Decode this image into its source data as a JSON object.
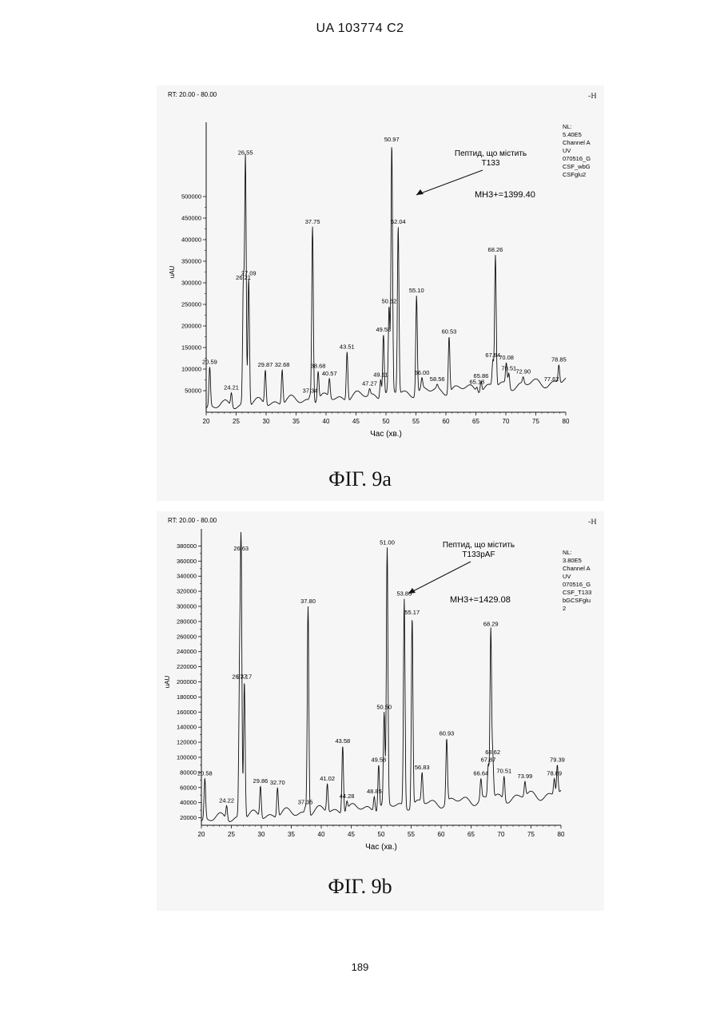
{
  "page": {
    "header": "UA   103774   C2",
    "footer": "189"
  },
  "figures": [
    {
      "caption": "ФІГ. 9а",
      "rt_label": "RT: 20.00 - 80.00",
      "corner_mark": "-ℍ",
      "side_note": [
        "NL:",
        "5.40E5",
        "Channel A",
        "UV",
        "070516_G",
        "CSF_wbG",
        "CSFglu2"
      ],
      "annotation_lines": [
        "Пептид, що містить",
        "Т133"
      ],
      "mh_label": "MH3+=1399.40"
    },
    {
      "caption": "ФІГ. 9b",
      "rt_label": "RT: 20.00 - 80.00",
      "corner_mark": "-ℍ",
      "side_note": [
        "NL:",
        "3.80E5",
        "Channel A",
        "UV",
        "070516_G",
        "CSF_T133",
        "bGCSFglu",
        "2"
      ],
      "annotation_lines": [
        "Пептид, що містить",
        "T133pAF"
      ],
      "mh_label": "MH3+=1429.08"
    }
  ],
  "chart_data": [
    {
      "type": "line",
      "xlabel": "Час (хв.)",
      "ylabel": "uAU",
      "xlim": [
        20,
        80
      ],
      "ylim": [
        0,
        650000
      ],
      "xticks": [
        20,
        25,
        30,
        35,
        40,
        45,
        50,
        55,
        60,
        65,
        70,
        75,
        80
      ],
      "yticks": [
        50000,
        100000,
        150000,
        200000,
        250000,
        300000,
        350000,
        400000,
        450000,
        500000
      ],
      "peaks": [
        {
          "label": "20.59",
          "x": 20.59,
          "y": 105000
        },
        {
          "label": "24.21",
          "x": 24.21,
          "y": 45000
        },
        {
          "label": "26.21",
          "x": 26.21,
          "y": 300000
        },
        {
          "label": "26.55",
          "x": 26.55,
          "y": 590000
        },
        {
          "label": "27.09",
          "x": 27.09,
          "y": 310000
        },
        {
          "label": "29.87",
          "x": 29.87,
          "y": 98000
        },
        {
          "label": "32.68",
          "x": 32.68,
          "y": 98000
        },
        {
          "label": "37.34",
          "x": 37.34,
          "y": 38000
        },
        {
          "label": "37.75",
          "x": 37.75,
          "y": 430000
        },
        {
          "label": "38.68",
          "x": 38.68,
          "y": 95000
        },
        {
          "label": "40.57",
          "x": 40.57,
          "y": 78000
        },
        {
          "label": "43.51",
          "x": 43.51,
          "y": 140000
        },
        {
          "label": "47.27",
          "x": 47.27,
          "y": 55000
        },
        {
          "label": "49.11",
          "x": 49.11,
          "y": 75000
        },
        {
          "label": "49.58",
          "x": 49.58,
          "y": 180000
        },
        {
          "label": "50.52",
          "x": 50.52,
          "y": 245000
        },
        {
          "label": "50.97",
          "x": 50.97,
          "y": 620000
        },
        {
          "label": "52.04",
          "x": 52.04,
          "y": 430000
        },
        {
          "label": "55.10",
          "x": 55.1,
          "y": 270000
        },
        {
          "label": "56.00",
          "x": 56.0,
          "y": 80000
        },
        {
          "label": "58.56",
          "x": 58.56,
          "y": 65000
        },
        {
          "label": "60.53",
          "x": 60.53,
          "y": 175000
        },
        {
          "label": "65.18",
          "x": 65.18,
          "y": 58000
        },
        {
          "label": "65.86",
          "x": 65.86,
          "y": 72000
        },
        {
          "label": "67.84",
          "x": 67.84,
          "y": 120000
        },
        {
          "label": "68.26",
          "x": 68.26,
          "y": 365000
        },
        {
          "label": "70.08",
          "x": 70.08,
          "y": 115000
        },
        {
          "label": "70.51",
          "x": 70.51,
          "y": 90000
        },
        {
          "label": "72.90",
          "x": 72.9,
          "y": 82000
        },
        {
          "label": "77.62",
          "x": 77.62,
          "y": 65000
        },
        {
          "label": "78.85",
          "x": 78.85,
          "y": 110000
        }
      ]
    },
    {
      "type": "line",
      "xlabel": "Час (хв.)",
      "ylabel": "uAU",
      "xlim": [
        20,
        80
      ],
      "ylim": [
        10000,
        390000
      ],
      "xticks": [
        20,
        25,
        30,
        35,
        40,
        45,
        50,
        55,
        60,
        65,
        70,
        75,
        80
      ],
      "yticks": [
        20000,
        40000,
        60000,
        80000,
        100000,
        120000,
        140000,
        160000,
        180000,
        200000,
        220000,
        240000,
        260000,
        280000,
        300000,
        320000,
        340000,
        360000,
        380000
      ],
      "peaks": [
        {
          "label": "20.58",
          "x": 20.58,
          "y": 72000
        },
        {
          "label": "24.22",
          "x": 24.22,
          "y": 36000
        },
        {
          "label": "26.37",
          "x": 26.37,
          "y": 200000
        },
        {
          "label": "26.63",
          "x": 26.63,
          "y": 370000
        },
        {
          "label": "27.17",
          "x": 27.17,
          "y": 200000
        },
        {
          "label": "29.86",
          "x": 29.86,
          "y": 62000
        },
        {
          "label": "32.70",
          "x": 32.7,
          "y": 60000
        },
        {
          "label": "37.35",
          "x": 37.35,
          "y": 34000
        },
        {
          "label": "37.80",
          "x": 37.8,
          "y": 300000
        },
        {
          "label": "41.02",
          "x": 41.02,
          "y": 65000
        },
        {
          "label": "43.58",
          "x": 43.58,
          "y": 115000
        },
        {
          "label": "44.28",
          "x": 44.28,
          "y": 42000
        },
        {
          "label": "48.85",
          "x": 48.85,
          "y": 48000
        },
        {
          "label": "49.58",
          "x": 49.58,
          "y": 90000
        },
        {
          "label": "50.50",
          "x": 50.5,
          "y": 160000
        },
        {
          "label": "51.00",
          "x": 51.0,
          "y": 378000
        },
        {
          "label": "53.85",
          "x": 53.85,
          "y": 310000
        },
        {
          "label": "55.17",
          "x": 55.17,
          "y": 285000
        },
        {
          "label": "56.83",
          "x": 56.83,
          "y": 80000
        },
        {
          "label": "60.93",
          "x": 60.93,
          "y": 125000
        },
        {
          "label": "66.64",
          "x": 66.64,
          "y": 72000
        },
        {
          "label": "67.87",
          "x": 67.87,
          "y": 90000
        },
        {
          "label": "68.29",
          "x": 68.29,
          "y": 270000
        },
        {
          "label": "68.62",
          "x": 68.62,
          "y": 100000
        },
        {
          "label": "70.51",
          "x": 70.51,
          "y": 75000
        },
        {
          "label": "73.99",
          "x": 73.99,
          "y": 68000
        },
        {
          "label": "78.89",
          "x": 78.89,
          "y": 72000
        },
        {
          "label": "79.39",
          "x": 79.39,
          "y": 90000
        }
      ]
    }
  ]
}
